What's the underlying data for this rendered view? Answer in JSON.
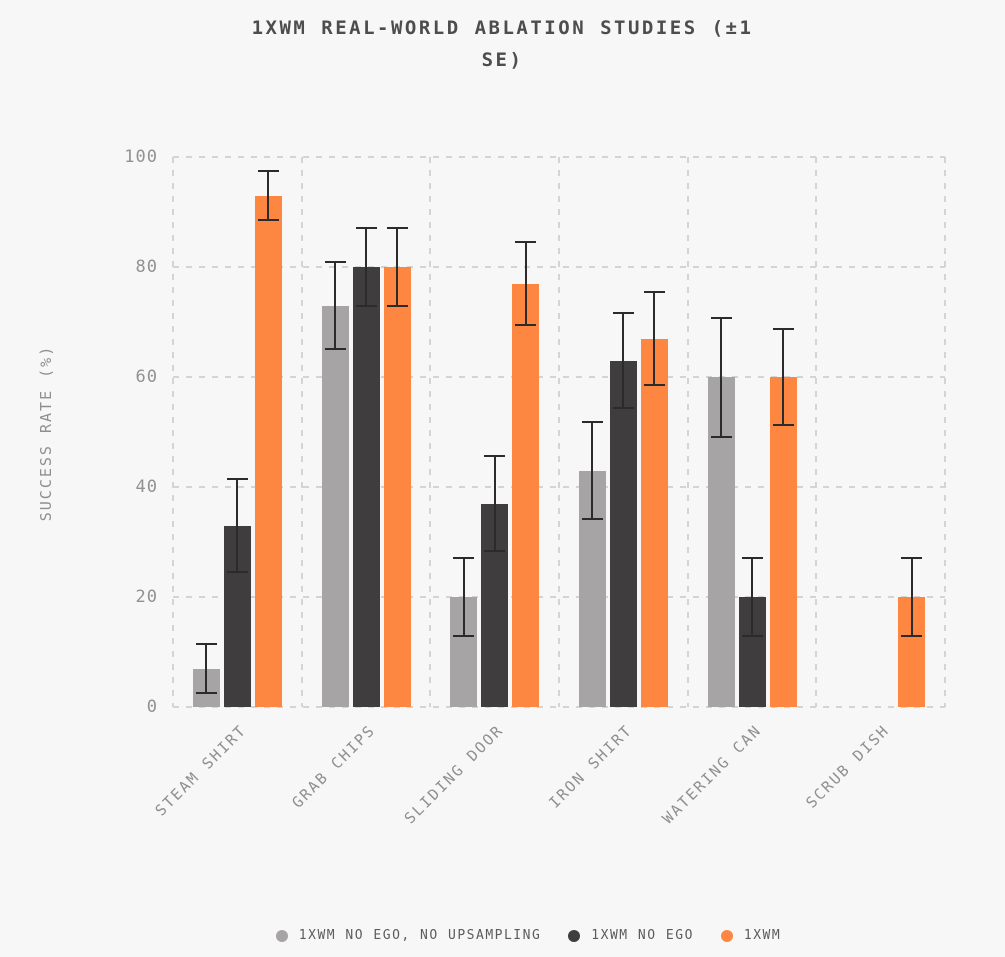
{
  "page": {
    "background": "#f7f7f7"
  },
  "chart_data": {
    "type": "bar",
    "title": "1XWM REAL-WORLD ABLATION STUDIES (±1 SE)",
    "ylabel": "SUCCESS RATE (%)",
    "xlabel": "",
    "ylim": [
      0,
      100
    ],
    "yticks": [
      0,
      20,
      40,
      60,
      80,
      100
    ],
    "grid": "dashed-both-axes",
    "legend_position": "bottom-center",
    "error_bars": "±1 SE",
    "categories": [
      "STEAM SHIRT",
      "GRAB CHIPS",
      "SLIDING DOOR",
      "IRON SHIRT",
      "WATERING CAN",
      "SCRUB DISH"
    ],
    "series": [
      {
        "name": "1XWM NO EGO, NO UPSAMPLING",
        "color": "#a6a4a4",
        "values": [
          7,
          73,
          20,
          43,
          60,
          0
        ],
        "se": [
          4.7,
          8.1,
          7.3,
          9.0,
          11.0,
          0
        ]
      },
      {
        "name": "1XWM NO EGO",
        "color": "#3f3d3d",
        "values": [
          33,
          80,
          37,
          63,
          20,
          0
        ],
        "se": [
          8.6,
          7.3,
          8.8,
          8.8,
          7.3,
          0
        ]
      },
      {
        "name": "1XWM",
        "color": "#fd8640",
        "values": [
          93,
          80,
          77,
          67,
          60,
          20
        ],
        "se": [
          4.7,
          7.3,
          7.7,
          8.6,
          8.9,
          7.3
        ]
      }
    ],
    "colors": {
      "grid": "#d4d4d4",
      "error_bar": "#2b2b2b",
      "title_text": "#4d4d4d",
      "axis_text": "#8f8f8f",
      "legend_text": "#5c5c5c"
    }
  }
}
